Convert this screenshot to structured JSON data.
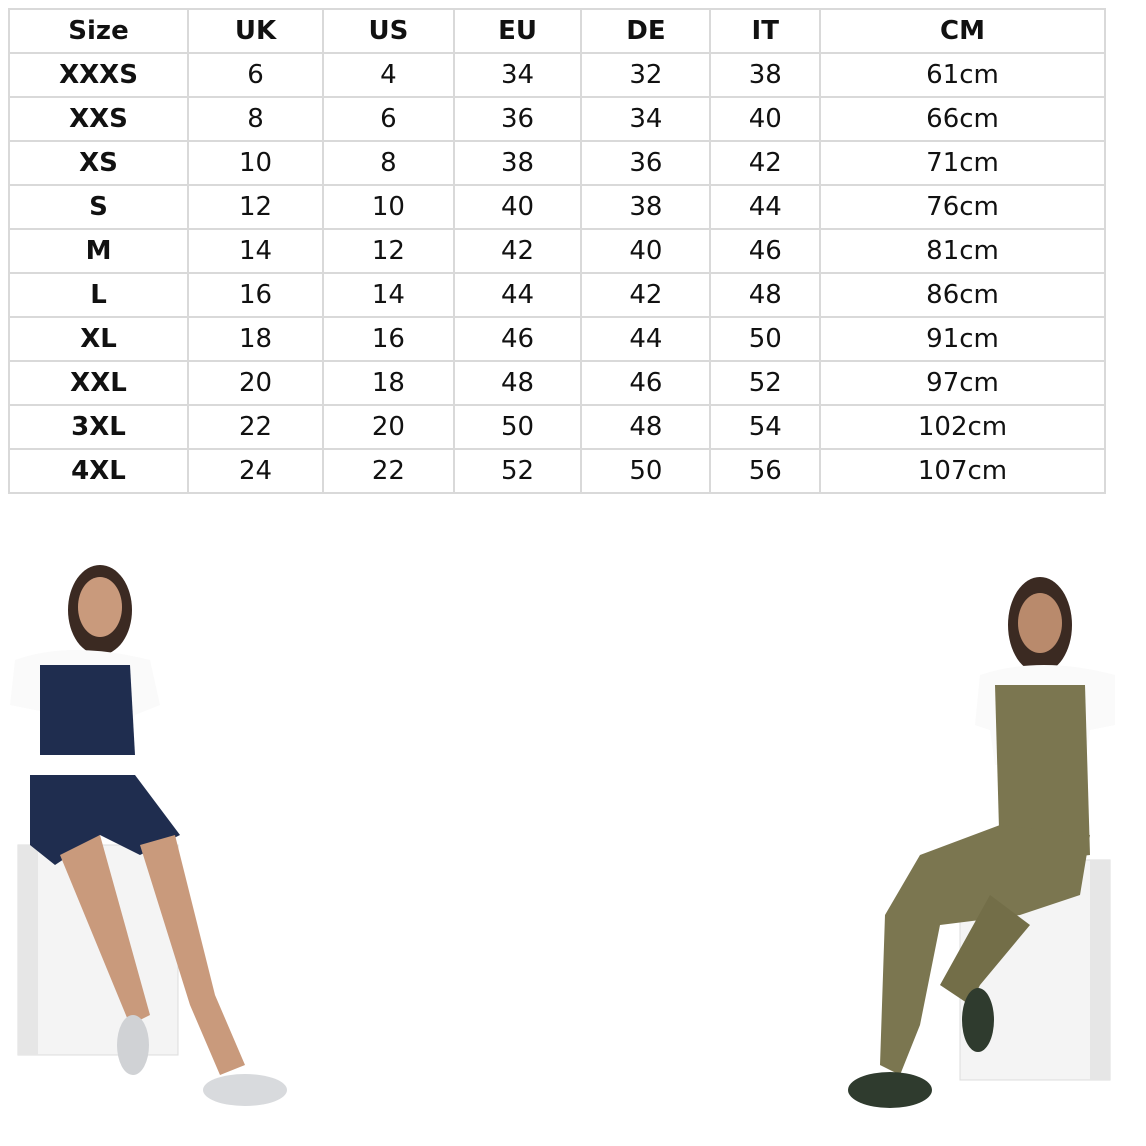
{
  "size_chart": {
    "headers": [
      "Size",
      "UK",
      "US",
      "EU",
      "DE",
      "IT",
      "CM"
    ],
    "rows": [
      [
        "XXXS",
        "6",
        "4",
        "34",
        "32",
        "38",
        "61cm"
      ],
      [
        "XXS",
        "8",
        "6",
        "36",
        "34",
        "40",
        "66cm"
      ],
      [
        "XS",
        "10",
        "8",
        "38",
        "36",
        "42",
        "71cm"
      ],
      [
        "S",
        "12",
        "10",
        "40",
        "38",
        "44",
        "76cm"
      ],
      [
        "M",
        "14",
        "12",
        "42",
        "40",
        "46",
        "81cm"
      ],
      [
        "L",
        "16",
        "14",
        "44",
        "42",
        "48",
        "86cm"
      ],
      [
        "XL",
        "18",
        "16",
        "46",
        "44",
        "50",
        "91cm"
      ],
      [
        "XXL",
        "20",
        "18",
        "48",
        "46",
        "52",
        "97cm"
      ],
      [
        "3XL",
        "22",
        "20",
        "50",
        "48",
        "54",
        "102cm"
      ],
      [
        "4XL",
        "24",
        "22",
        "52",
        "50",
        "56",
        "107cm"
      ]
    ]
  },
  "photos": {
    "left": {
      "garment_color": "#1f2d4f"
    },
    "right": {
      "garment_color": "#7b7650"
    }
  }
}
